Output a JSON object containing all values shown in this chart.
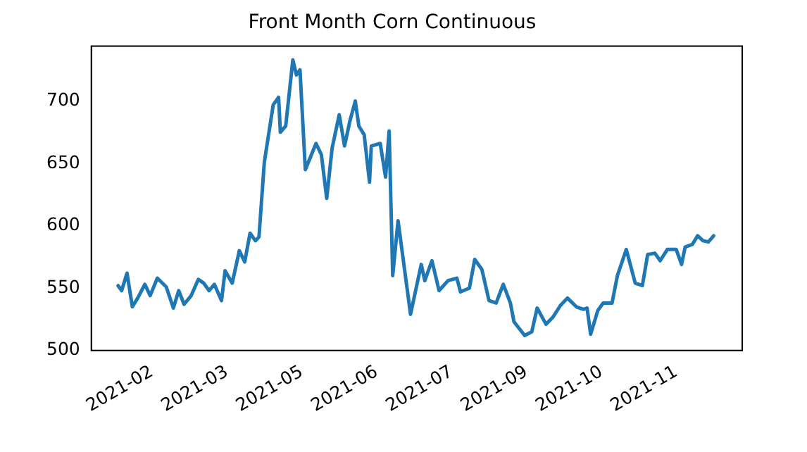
{
  "chart_data": {
    "type": "line",
    "title": "Front Month Corn Continuous",
    "x": [
      "2021-01-19",
      "2021-01-21",
      "2021-01-24",
      "2021-01-27",
      "2021-01-30",
      "2021-02-03",
      "2021-02-06",
      "2021-02-10",
      "2021-02-15",
      "2021-02-19",
      "2021-02-22",
      "2021-02-25",
      "2021-03-01",
      "2021-03-05",
      "2021-03-08",
      "2021-03-11",
      "2021-03-14",
      "2021-03-18",
      "2021-03-20",
      "2021-03-24",
      "2021-03-28",
      "2021-03-31",
      "2021-04-03",
      "2021-04-06",
      "2021-04-08",
      "2021-04-11",
      "2021-04-16",
      "2021-04-19",
      "2021-04-20",
      "2021-04-23",
      "2021-04-27",
      "2021-04-29",
      "2021-05-01",
      "2021-05-04",
      "2021-05-10",
      "2021-05-13",
      "2021-05-16",
      "2021-05-19",
      "2021-05-23",
      "2021-05-26",
      "2021-05-29",
      "2021-06-01",
      "2021-06-03",
      "2021-06-06",
      "2021-06-09",
      "2021-06-10",
      "2021-06-15",
      "2021-06-18",
      "2021-06-20",
      "2021-06-22",
      "2021-06-25",
      "2021-07-02",
      "2021-07-08",
      "2021-07-10",
      "2021-07-14",
      "2021-07-18",
      "2021-07-23",
      "2021-07-28",
      "2021-07-30",
      "2021-08-04",
      "2021-08-07",
      "2021-08-11",
      "2021-08-15",
      "2021-08-19",
      "2021-08-23",
      "2021-08-27",
      "2021-08-29",
      "2021-09-04",
      "2021-09-08",
      "2021-09-11",
      "2021-09-16",
      "2021-09-20",
      "2021-09-24",
      "2021-09-28",
      "2021-10-03",
      "2021-10-07",
      "2021-10-09",
      "2021-10-11",
      "2021-10-15",
      "2021-10-18",
      "2021-10-23",
      "2021-10-26",
      "2021-10-31",
      "2021-11-05",
      "2021-11-09",
      "2021-11-12",
      "2021-11-16",
      "2021-11-19",
      "2021-11-23",
      "2021-11-28",
      "2021-12-01",
      "2021-12-03",
      "2021-12-07",
      "2021-12-10",
      "2021-12-13",
      "2021-12-16",
      "2021-12-19"
    ],
    "series": [
      {
        "color": "#1f77b4",
        "values": [
          552,
          548,
          562,
          535,
          542,
          553,
          544,
          558,
          551,
          534,
          548,
          537,
          544,
          557,
          554,
          548,
          553,
          540,
          564,
          554,
          580,
          571,
          594,
          588,
          591,
          651,
          697,
          703,
          675,
          680,
          733,
          721,
          725,
          645,
          666,
          657,
          622,
          662,
          689,
          664,
          684,
          700,
          680,
          673,
          635,
          664,
          666,
          639,
          676,
          560,
          604,
          529,
          569,
          556,
          572,
          548,
          556,
          558,
          547,
          550,
          573,
          565,
          540,
          538,
          553,
          538,
          523,
          512,
          515,
          534,
          521,
          527,
          536,
          542,
          535,
          533,
          534,
          513,
          532,
          538,
          538,
          560,
          581,
          554,
          552,
          577,
          578,
          572,
          581,
          581,
          569,
          583,
          585,
          592,
          588,
          587,
          592
        ]
      }
    ],
    "xlim": [
      "2021-01-04",
      "2022-01-04"
    ],
    "xticks": [
      {
        "value": "2021-02-07",
        "label": "2021-02"
      },
      {
        "value": "2021-03-21",
        "label": "2021-03"
      },
      {
        "value": "2021-05-02",
        "label": "2021-05"
      },
      {
        "value": "2021-06-13",
        "label": "2021-06"
      },
      {
        "value": "2021-07-25",
        "label": "2021-07"
      },
      {
        "value": "2021-09-05",
        "label": "2021-09"
      },
      {
        "value": "2021-10-17",
        "label": "2021-10"
      },
      {
        "value": "2021-11-28",
        "label": "2021-11"
      }
    ],
    "ylim": [
      500,
      744
    ],
    "yticks": [
      500,
      550,
      600,
      650,
      700
    ],
    "grid": false,
    "legend": false,
    "marker": "none",
    "line_style": "solid"
  }
}
